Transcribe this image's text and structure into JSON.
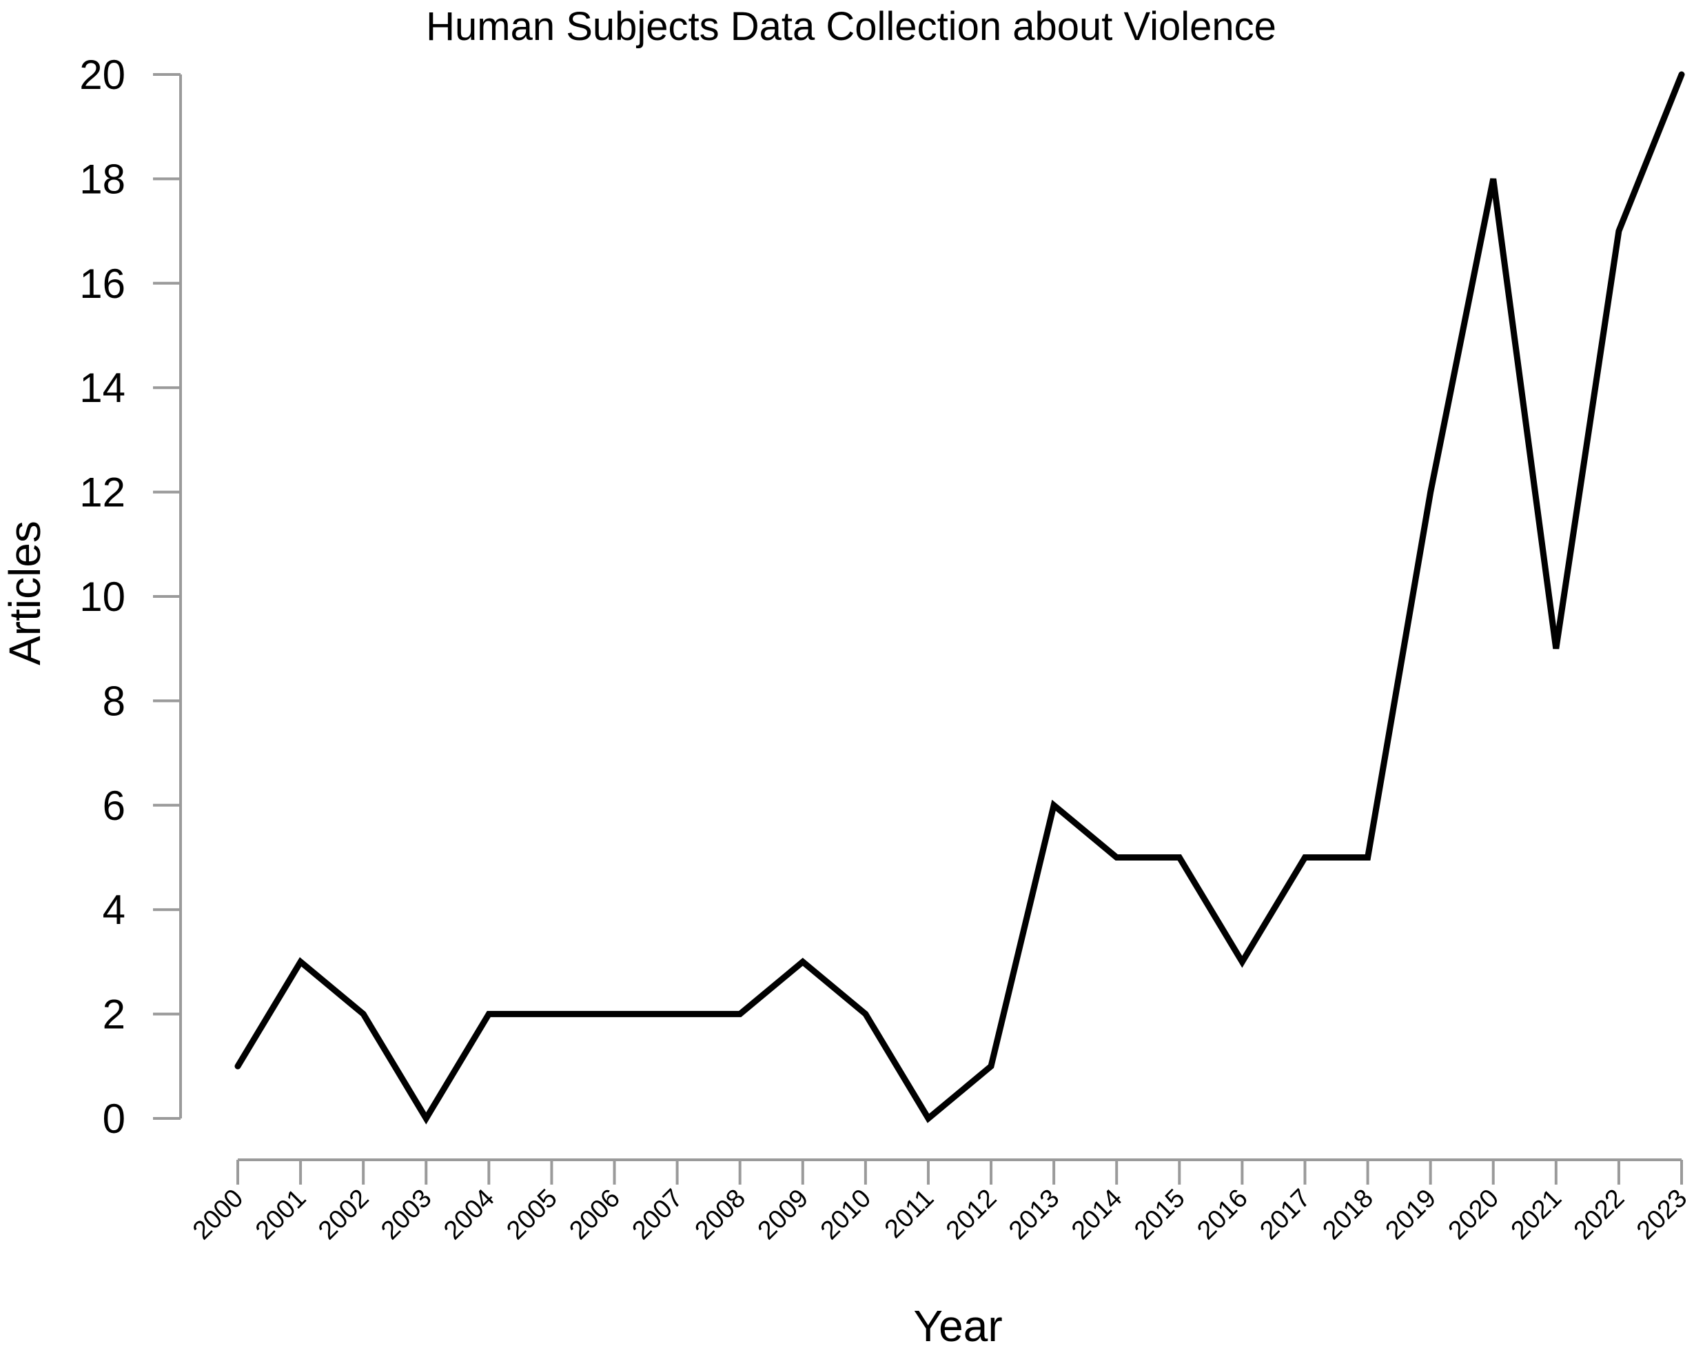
{
  "chart_data": {
    "type": "line",
    "title": "Human Subjects Data Collection about Violence",
    "xlabel": "Year",
    "ylabel": "Articles",
    "x": [
      "2000",
      "2001",
      "2002",
      "2003",
      "2004",
      "2005",
      "2006",
      "2007",
      "2008",
      "2009",
      "2010",
      "2011",
      "2012",
      "2013",
      "2014",
      "2015",
      "2016",
      "2017",
      "2018",
      "2019",
      "2020",
      "2021",
      "2022",
      "2023"
    ],
    "series": [
      {
        "values": [
          1,
          3,
          2,
          0,
          2,
          2,
          2,
          2,
          2,
          3,
          2,
          0,
          1,
          6,
          5,
          5,
          3,
          5,
          5,
          12,
          18,
          9,
          17,
          20
        ]
      }
    ],
    "ylim": [
      0,
      20
    ],
    "yticks": [
      0,
      2,
      4,
      6,
      8,
      10,
      12,
      14,
      16,
      18,
      20
    ],
    "grid": false,
    "colors": {
      "line": "#000000",
      "axis": "#9a9a9a"
    }
  }
}
